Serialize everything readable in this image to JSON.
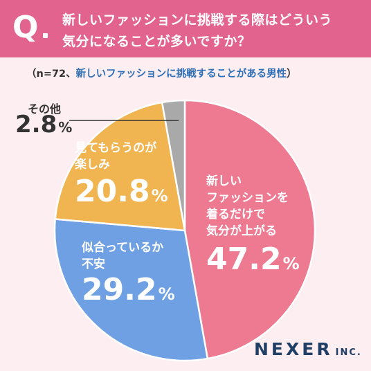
{
  "header": {
    "q_mark": "Q",
    "question_line1": "新しいファッションに挑戦する際はどういう",
    "question_line2": "気分になることが多いですか？"
  },
  "sample": {
    "prefix": "（n=72、",
    "highlight": "新しいファッションに挑戦することがある男性",
    "suffix": "）"
  },
  "logo": {
    "main": "NEXER",
    "suffix": "INC."
  },
  "colors": {
    "header": "#e2648e",
    "background": "#fdeef2",
    "slice_1": "#ee7a91",
    "slice_2": "#6fa0e4",
    "slice_3": "#f0b451",
    "slice_4": "#a9a9a9",
    "accent_text": "#2f6fb6"
  },
  "chart_data": {
    "type": "pie",
    "unit": "%",
    "slices": [
      {
        "label_line1": "新しい",
        "label_line2": "ファッションを",
        "label_line3": "着るだけで",
        "label_line4": "気分が上がる",
        "value": 47.2,
        "value_text": "47.2",
        "color": "#ee7a91"
      },
      {
        "label_line1": "似合っているか",
        "label_line2": "不安",
        "value": 29.2,
        "value_text": "29.2",
        "color": "#6fa0e4"
      },
      {
        "label_line1": "見てもらうのが",
        "label_line2": "楽しみ",
        "value": 20.8,
        "value_text": "20.8",
        "color": "#f0b451"
      },
      {
        "label_line1": "その他",
        "value": 2.8,
        "value_text": "2.8",
        "color": "#a9a9a9"
      }
    ]
  }
}
